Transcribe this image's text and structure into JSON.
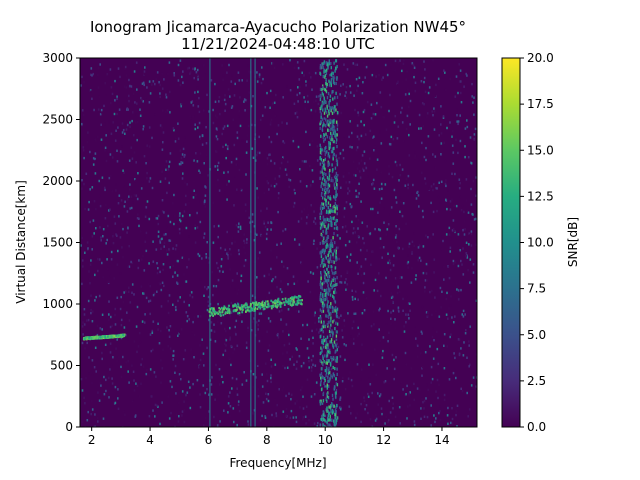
{
  "chart_data": {
    "type": "heatmap",
    "title": "Ionogram Jicamarca-Ayacucho Polarization NW45°",
    "subtitle": "11/21/2024-04:48:10 UTC",
    "xlabel": "Frequency[MHz]",
    "ylabel": "Virtual Distance[km]",
    "xlim": [
      1.6,
      15.2
    ],
    "ylim": [
      0,
      3000
    ],
    "xticks": [
      2,
      4,
      6,
      8,
      10,
      12,
      14
    ],
    "yticks": [
      0,
      500,
      1000,
      1500,
      2000,
      2500,
      3000
    ],
    "colorbar": {
      "label": "SNR[dB]",
      "range": [
        0,
        20
      ],
      "ticks": [
        "0.0",
        "2.5",
        "5.0",
        "7.5",
        "10.0",
        "12.5",
        "15.0",
        "17.5",
        "20.0"
      ],
      "colormap": "viridis"
    },
    "traces": [
      {
        "name": "low-frequency echo trace",
        "freq_range_mhz": [
          1.7,
          3.1
        ],
        "distance_km": [
          720,
          760
        ],
        "snr_db": 17
      },
      {
        "name": "mid-frequency echo trace",
        "freq_range_mhz": [
          6.0,
          9.2
        ],
        "distance_km": [
          900,
          1080
        ],
        "snr_db": 16
      }
    ],
    "vertical_lines_mhz": [
      6.05,
      7.45,
      7.6
    ],
    "noise_band_mhz": [
      9.8,
      10.4
    ]
  }
}
